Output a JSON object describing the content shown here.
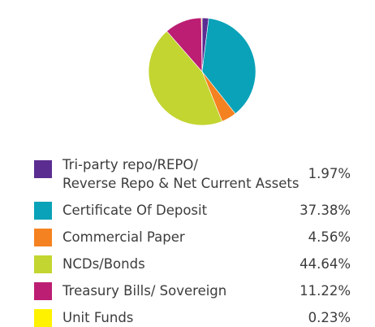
{
  "chart_data": {
    "type": "pie",
    "slices": [
      {
        "label_lines": [
          "Tri-party repo/REPO/",
          "Reverse Repo & Net Current Assets"
        ],
        "value": 1.97,
        "value_text": "1.97%",
        "color": "#5b2d91"
      },
      {
        "label_lines": [
          "Certificate Of Deposit"
        ],
        "value": 37.38,
        "value_text": "37.38%",
        "color": "#0aa2b8"
      },
      {
        "label_lines": [
          "Commercial Paper"
        ],
        "value": 4.56,
        "value_text": "4.56%",
        "color": "#f58220"
      },
      {
        "label_lines": [
          "NCDs/Bonds"
        ],
        "value": 44.64,
        "value_text": "44.64%",
        "color": "#c3d530"
      },
      {
        "label_lines": [
          "Treasury Bills/ Sovereign"
        ],
        "value": 11.22,
        "value_text": "11.22%",
        "color": "#bc1e73"
      },
      {
        "label_lines": [
          "Unit Funds"
        ],
        "value": 0.23,
        "value_text": "0.23%",
        "color": "#fff200"
      }
    ],
    "start": "12 o'clock",
    "direction": "clockwise",
    "legend_position": "below"
  }
}
